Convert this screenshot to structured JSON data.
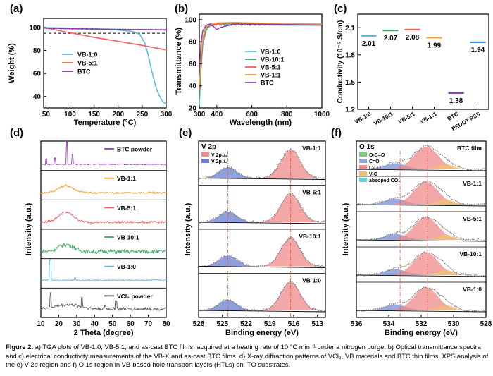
{
  "panel_labels": {
    "a": "(a)",
    "b": "(b)",
    "c": "(c)",
    "d": "(d)",
    "e": "(e)",
    "f": "(f)"
  },
  "caption": {
    "lead": "Figure 2.",
    "text": "a) TGA plots of VB-1:0, VB-5:1, and as-cast BTC films, acquired at a heating rate of 10 °C min⁻¹ under a nitrogen purge. b) Optical transmittance spectra and c) electrical conductivity measurements of the VB-X and as-cast BTC films. d) X-ray diffraction patterns of VCl₃, VB materials and BTC thin films. XPS analysis of the e) V 2p region and f) O 1s region in VB-based hole transport layers (HTLs) on ITO substrates."
  },
  "chart_data": [
    {
      "id": "a",
      "type": "line",
      "xlabel": "Temperature (°C)",
      "ylabel": "Weight (%)",
      "xlim": [
        45,
        300
      ],
      "ylim": [
        30,
        108
      ],
      "xticks": [
        50,
        100,
        150,
        200,
        250,
        300
      ],
      "yticks": [
        40,
        60,
        80,
        100
      ],
      "reference_line": 95,
      "series": [
        {
          "name": "VB-1:0",
          "color": "#5fb8e6",
          "x": [
            45,
            100,
            150,
            200,
            230,
            245,
            255,
            262,
            270,
            280,
            290,
            300
          ],
          "y": [
            100,
            99.5,
            99,
            98,
            96.5,
            94,
            87,
            77,
            62,
            46,
            37,
            33
          ]
        },
        {
          "name": "VB-5:1",
          "color": "#f06060",
          "x": [
            45,
            100,
            150,
            200,
            250,
            300
          ],
          "y": [
            100,
            95.5,
            91.5,
            88,
            84.5,
            80.5
          ]
        },
        {
          "name": "BTC",
          "color": "#8a3fb0",
          "x": [
            45,
            100,
            150,
            200,
            250,
            300
          ],
          "y": [
            99.5,
            99,
            98.7,
            98.5,
            98.3,
            98
          ]
        }
      ]
    },
    {
      "id": "b",
      "type": "line",
      "xlabel": "Wavelength (nm)",
      "ylabel": "Transmittance (%)",
      "xlim": [
        300,
        1000
      ],
      "ylim": [
        20,
        105
      ],
      "xticks": [
        300,
        400,
        600,
        800,
        1000
      ],
      "yticks": [
        20,
        40,
        60,
        80,
        100
      ],
      "reference_line": 95,
      "series": [
        {
          "name": "VB-1:0",
          "color": "#5fb8e6",
          "x": [
            300,
            310,
            320,
            340,
            360,
            400,
            500,
            600,
            800,
            1000
          ],
          "y": [
            22,
            55,
            78,
            90,
            94,
            96,
            96,
            95.5,
            95,
            95
          ]
        },
        {
          "name": "VB-10:1",
          "color": "#3aa860",
          "x": [
            300,
            310,
            320,
            340,
            360,
            400,
            500,
            600,
            800,
            1000
          ],
          "y": [
            28,
            60,
            80,
            92,
            95,
            96,
            96.5,
            96,
            95.5,
            95
          ]
        },
        {
          "name": "VB-5:1",
          "color": "#f06060",
          "x": [
            300,
            310,
            320,
            340,
            360,
            400,
            500,
            600,
            800,
            1000
          ],
          "y": [
            35,
            65,
            82,
            93,
            95,
            96,
            97,
            96.5,
            96,
            96
          ]
        },
        {
          "name": "VB-1:1",
          "color": "#f0a030",
          "x": [
            300,
            310,
            320,
            340,
            360,
            400,
            500,
            600,
            800,
            1000
          ],
          "y": [
            40,
            68,
            84,
            94,
            96,
            97,
            97.5,
            97,
            96.5,
            96
          ]
        },
        {
          "name": "BTC",
          "color": "#8a3fb0",
          "x": [
            300,
            310,
            320,
            340,
            360,
            380,
            400,
            420,
            500,
            600,
            800,
            1000
          ],
          "y": [
            55,
            80,
            90,
            95,
            96,
            94,
            91,
            93,
            96,
            96,
            95.5,
            95
          ]
        }
      ]
    },
    {
      "id": "c",
      "type": "scatter",
      "ylabel": "Conductivity (10⁻⁵ S/cm)",
      "ylim": [
        1.2,
        2.25
      ],
      "yticks": [
        1.2,
        1.5,
        1.8,
        2.1
      ],
      "categories": [
        "VB-1:0",
        "VB-10:1",
        "VB-5:1",
        "VB-1:1",
        "BTC",
        "PEDOT:PSS"
      ],
      "values": [
        2.01,
        2.07,
        2.08,
        1.99,
        1.38,
        1.94
      ],
      "value_labels": [
        "2.01",
        "2.07",
        "2.08",
        "1.99",
        "1.38",
        "1.94"
      ],
      "colors": [
        "#5fb8e6",
        "#3aa860",
        "#f06060",
        "#f0a030",
        "#8a3fb0",
        "#3b8ed0"
      ]
    },
    {
      "id": "d",
      "type": "line",
      "xlabel": "2 Theta (degree)",
      "ylabel": "Intensity (a.u.)",
      "xlim": [
        10,
        80
      ],
      "xticks": [
        10,
        20,
        30,
        40,
        50,
        60,
        70,
        80
      ],
      "series": [
        {
          "name": "BTC powder",
          "color": "#8a3fb0"
        },
        {
          "name": "VB-1:1",
          "color": "#f0a030"
        },
        {
          "name": "VB-5:1",
          "color": "#f06060"
        },
        {
          "name": "VB-10:1",
          "color": "#3aa860"
        },
        {
          "name": "VB-1:0",
          "color": "#5fb8e6"
        },
        {
          "name": "VCl3 powder",
          "display": "VCl₃ powder",
          "color": "#555555"
        }
      ]
    },
    {
      "id": "e",
      "type": "line",
      "title": "V 2p",
      "xlabel": "Binding energy (eV)",
      "ylabel": "Intensity (a.u.)",
      "xlim": [
        528,
        512
      ],
      "xticks": [
        528,
        525,
        522,
        519,
        516,
        513
      ],
      "legend": [
        "V 2p3/2",
        "V 2p1/2"
      ],
      "legend_display": [
        "V 2p₃/₂",
        "V 2p₁/₂"
      ],
      "peaks": [
        524.3,
        516.4
      ],
      "series": [
        {
          "name": "VB-1:1"
        },
        {
          "name": "VB-5:1"
        },
        {
          "name": "VB-10:1"
        },
        {
          "name": "VB-1:0"
        }
      ]
    },
    {
      "id": "f",
      "type": "line",
      "title": "O 1s",
      "xlabel": "Binding energy (eV)",
      "ylabel": "Intensity (a.u.)",
      "xlim": [
        536,
        528
      ],
      "xticks": [
        536,
        534,
        532,
        530,
        528
      ],
      "legend": [
        "O-C=O",
        "C=O",
        "C-O",
        "V-O",
        "absoped CO2"
      ],
      "legend_display": [
        "O-C=O",
        "C=O",
        "C-O",
        "V-O",
        "absoped CO₂"
      ],
      "peaks": [
        533.3,
        531.6
      ],
      "series": [
        {
          "name": "BTC film"
        },
        {
          "name": "VB-1:1"
        },
        {
          "name": "VB-5:1"
        },
        {
          "name": "VB-10:1"
        },
        {
          "name": "VB-1:0"
        }
      ]
    }
  ]
}
